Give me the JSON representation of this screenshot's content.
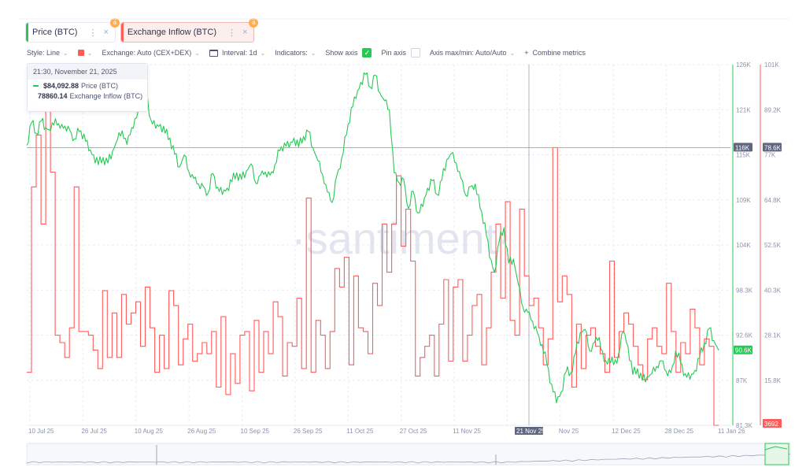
{
  "tabs": [
    {
      "label": "Price (BTC)",
      "dots": "⋮",
      "close": "×",
      "lock": "a"
    },
    {
      "label": "Exchange Inflow (BTC)",
      "dots": "⋮",
      "close": "×",
      "lock": "a"
    }
  ],
  "toolbar": {
    "style": "Style: Line",
    "exchange": "Exchange: Auto (CEX+DEX)",
    "interval": "Interval: 1d",
    "indicators": "Indicators:",
    "show_axis": "Show axis",
    "pin_axis": "Pin axis",
    "axis_maxmin": "Axis max/min: Auto/Auto",
    "combine": "Combine metrics",
    "plus": "+",
    "check": "✓"
  },
  "tooltip": {
    "date": "21:30, November 21, 2025",
    "price_value": "$84,092.88",
    "price_label": "Price (BTC)",
    "inflow_value": "78860.14",
    "inflow_label": "Exchange Inflow (BTC)"
  },
  "watermark": "·santiment·",
  "colors": {
    "price": "#26c953",
    "inflow": "#ff5b5b",
    "grid": "#e9ecf3",
    "accent_orange": "#ffad4d"
  },
  "chart_data": {
    "type": "line",
    "x_ticks": [
      "10 Jul 25",
      "26 Jul 25",
      "10 Aug 25",
      "26 Aug 25",
      "10 Sep 25",
      "26 Sep 25",
      "11 Oct 25",
      "27 Oct 25",
      "11 Nov 25",
      "21 Nov 25",
      "Nov 25",
      "12 Dec 25",
      "28 Dec 25",
      "11 Jan 26"
    ],
    "highlight_x": "21 Nov 25",
    "y_left_ticks": [
      "126K",
      "121K",
      "115K",
      "109K",
      "104K",
      "98.3K",
      "92.6K",
      "87K",
      "81.3K"
    ],
    "y_left_range": [
      81300,
      126000
    ],
    "y_right_ticks": [
      "101K",
      "89.2K",
      "77K",
      "64.8K",
      "52.5K",
      "40.3K",
      "28.1K",
      "15.8K",
      "0"
    ],
    "y_right_range": [
      3692,
      101000
    ],
    "crosshair_labels": {
      "left": "116K",
      "right": "78.6K"
    },
    "last_value_labels": {
      "price": "90.6K",
      "inflow": "3692"
    },
    "series": [
      {
        "name": "Price (BTC)",
        "color": "#26c953",
        "values": [
          116000,
          118800,
          117500,
          119000,
          118200,
          117800,
          119300,
          118100,
          118400,
          117900,
          116800,
          117700,
          117400,
          115300,
          114800,
          113600,
          114500,
          113800,
          115300,
          116700,
          117800,
          116100,
          118200,
          119400,
          121700,
          122800,
          119200,
          118100,
          118600,
          117500,
          116900,
          114900,
          113300,
          114800,
          112700,
          111900,
          111200,
          110900,
          110100,
          112500,
          110800,
          109900,
          110700,
          111500,
          112600,
          111800,
          112800,
          113700,
          111300,
          112300,
          112700,
          112300,
          113600,
          115300,
          116300,
          115700,
          116900,
          115800,
          117100,
          117700,
          115700,
          114100,
          112400,
          110200,
          108900,
          112300,
          114400,
          117300,
          120600,
          121800,
          123800,
          124800,
          123200,
          124700,
          122500,
          121500,
          120400,
          112600,
          111400,
          111800,
          108200,
          110300,
          107600,
          108400,
          110700,
          111600,
          109900,
          111700,
          114200,
          115000,
          113800,
          111900,
          109800,
          110900,
          111200,
          108200,
          106400,
          102100,
          100300,
          104000,
          105800,
          101400,
          101900,
          98800,
          95900,
          95300,
          94200,
          92800,
          91300,
          88900,
          86400,
          84100,
          85400,
          87900,
          87800,
          90200,
          92800,
          93200,
          90500,
          91600,
          92200,
          89200,
          89600,
          88800,
          90100,
          92900,
          91100,
          87600,
          88300,
          86900,
          87300,
          87700,
          88600,
          89300,
          88000,
          87800,
          90500,
          89100,
          87700,
          87000,
          88100,
          89600,
          91500,
          93300,
          91800,
          90600
        ],
        "last_label": "90.6K"
      },
      {
        "name": "Exchange Inflow (BTC)",
        "color": "#ff5b5b",
        "values": [
          18000,
          68000,
          82000,
          58000,
          96000,
          72000,
          28000,
          26000,
          22000,
          30000,
          68000,
          29000,
          29000,
          28000,
          24000,
          19000,
          40000,
          22000,
          34000,
          22000,
          39000,
          31000,
          34000,
          37000,
          25000,
          41000,
          30000,
          18000,
          28000,
          19000,
          40000,
          36000,
          20000,
          27000,
          31000,
          21000,
          23000,
          26000,
          23000,
          29000,
          14000,
          33000,
          12000,
          23000,
          15000,
          28000,
          29000,
          13000,
          32000,
          18000,
          29000,
          23000,
          37000,
          33000,
          17000,
          26000,
          25000,
          38000,
          19000,
          65000,
          18000,
          32000,
          28000,
          19000,
          29000,
          46000,
          41000,
          49000,
          20000,
          44000,
          30000,
          29000,
          23000,
          42000,
          36000,
          58000,
          45000,
          58000,
          71000,
          52000,
          62000,
          48000,
          17000,
          22000,
          25000,
          28000,
          17000,
          31000,
          43000,
          21000,
          41000,
          43000,
          21000,
          28000,
          36000,
          39000,
          20000,
          30000,
          45000,
          58000,
          38000,
          64000,
          32000,
          28000,
          62000,
          44000,
          36000,
          38000,
          30000,
          20000,
          27000,
          78600,
          37000,
          44000,
          39000,
          14000,
          31000,
          19000,
          28000,
          30000,
          25000,
          23000,
          18000,
          48000,
          22000,
          29000,
          34000,
          31000,
          25000,
          20000,
          16000,
          27000,
          30000,
          25000,
          23000,
          42000,
          29000,
          18000,
          26000,
          23000,
          35000,
          30000,
          20000,
          27000,
          25000,
          3692
        ],
        "last_label": "3692"
      }
    ]
  }
}
